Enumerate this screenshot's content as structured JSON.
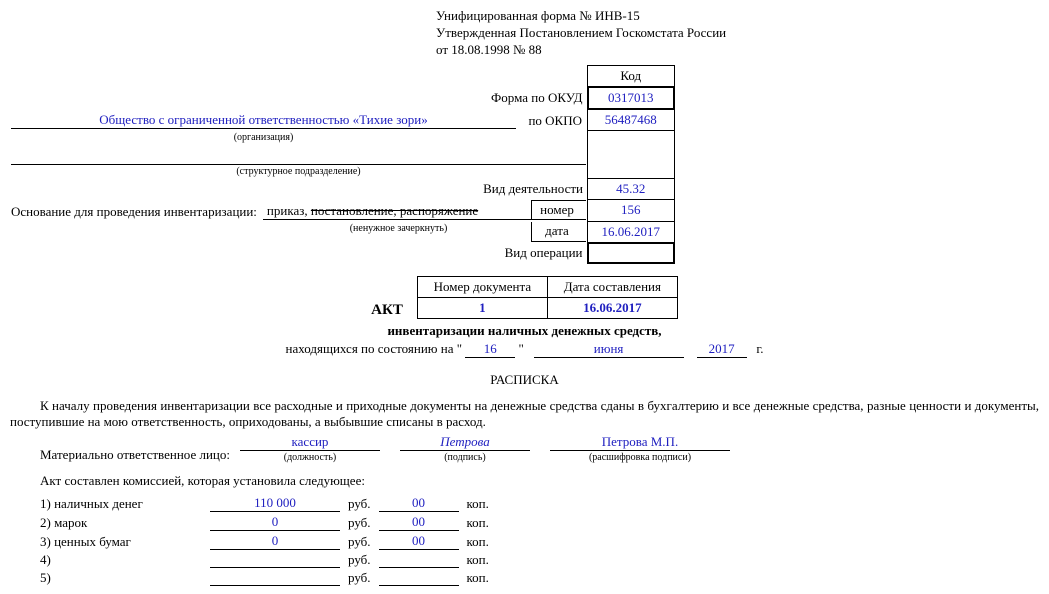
{
  "header": {
    "line1": "Унифицированная форма № ИНВ-15",
    "line2": "Утвержденная Постановлением Госкомстата России",
    "line3": "от 18.08.1998 № 88"
  },
  "form_labels": {
    "okud": "Форма по ОКУД",
    "okpo": "по ОКПО",
    "kod": "Код",
    "org_sub": "(организация)",
    "struct_sub": "(структурное подразделение)",
    "vid_deyat": "Вид деятельности",
    "basis_label": "Основание для проведения инвентаризации:",
    "basis_val": "приказ,",
    "basis_strike": "постановление, распоряжение",
    "basis_sub": "(ненужное зачеркнуть)",
    "nomer": "номер",
    "data": "дата",
    "vid_oper": "Вид операции"
  },
  "codes": {
    "okud": "0317013",
    "okpo": "56487468",
    "vid_deyat": "45.32",
    "nomer": "156",
    "data": "16.06.2017",
    "vid_oper": ""
  },
  "org": {
    "name": "Общество с ограниченной ответственностью «Тихие зори»",
    "struct": ""
  },
  "doc_table": {
    "h1": "Номер документа",
    "h2": "Дата составления",
    "num": "1",
    "date": "16.06.2017"
  },
  "akt": {
    "title": "АКТ",
    "subtitle": "инвентаризации наличных денежных средств,",
    "status_prefix": "находящихся по состоянию на \"",
    "status_mid": "\"",
    "day": "16",
    "month": "июня",
    "year": "2017",
    "year_suffix": "г."
  },
  "raspiska": {
    "title": "РАСПИСКА",
    "para": "К началу проведения инвентаризации все расходные и приходные документы на денежные средства сданы в бухгалтерию и все денежные средства, разные ценности и документы, поступившие на мою ответственность, оприходованы, а выбывшие списаны в расход.",
    "mol_label": "Материально ответственное лицо:",
    "position": "кассир",
    "position_sub": "(должность)",
    "sign": "Петрова",
    "sign_sub": "(подпись)",
    "decipher": "Петрова М.П.",
    "decipher_sub": "(расшифровка подписи)"
  },
  "commission": {
    "intro": "Акт составлен комиссией, которая установила следующее:",
    "rows": [
      {
        "label": "1) наличных денег",
        "rub": "110 000",
        "kop": "00"
      },
      {
        "label": "2) марок",
        "rub": "0",
        "kop": "00"
      },
      {
        "label": "3) ценных бумаг",
        "rub": "0",
        "kop": "00"
      },
      {
        "label": "4)",
        "rub": "",
        "kop": ""
      },
      {
        "label": "5)",
        "rub": "",
        "kop": ""
      }
    ],
    "rub_unit": "руб.",
    "kop_unit": "коп."
  },
  "style": {
    "blue": "#2020c0"
  }
}
